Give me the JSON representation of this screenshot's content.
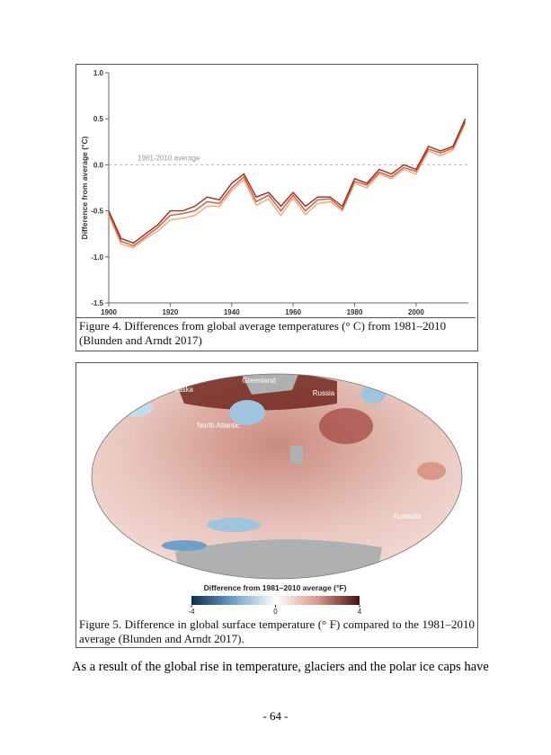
{
  "chart_data": {
    "type": "line",
    "y_label": "Difference from average (°C)",
    "annotation": "1981-2010 average",
    "x": [
      1900,
      1904,
      1908,
      1912,
      1916,
      1920,
      1924,
      1928,
      1932,
      1936,
      1940,
      1944,
      1948,
      1952,
      1956,
      1960,
      1964,
      1968,
      1972,
      1976,
      1980,
      1984,
      1988,
      1992,
      1996,
      2000,
      2004,
      2008,
      2012,
      2016
    ],
    "series": [
      {
        "color": "#9e2a22",
        "values": [
          -0.5,
          -0.8,
          -0.85,
          -0.75,
          -0.65,
          -0.5,
          -0.5,
          -0.45,
          -0.35,
          -0.38,
          -0.2,
          -0.1,
          -0.35,
          -0.3,
          -0.45,
          -0.3,
          -0.45,
          -0.35,
          -0.35,
          -0.45,
          -0.15,
          -0.2,
          -0.05,
          -0.1,
          0.0,
          -0.05,
          0.2,
          0.15,
          0.2,
          0.5
        ]
      },
      {
        "color": "#d8573a",
        "values": [
          -0.52,
          -0.83,
          -0.88,
          -0.78,
          -0.68,
          -0.55,
          -0.53,
          -0.5,
          -0.4,
          -0.42,
          -0.25,
          -0.13,
          -0.4,
          -0.33,
          -0.5,
          -0.33,
          -0.5,
          -0.38,
          -0.37,
          -0.48,
          -0.18,
          -0.22,
          -0.08,
          -0.13,
          -0.03,
          -0.07,
          0.17,
          0.13,
          0.18,
          0.47
        ]
      },
      {
        "color": "#f2a874",
        "values": [
          -0.55,
          -0.86,
          -0.9,
          -0.8,
          -0.72,
          -0.6,
          -0.58,
          -0.55,
          -0.45,
          -0.45,
          -0.28,
          -0.16,
          -0.44,
          -0.37,
          -0.55,
          -0.36,
          -0.54,
          -0.42,
          -0.4,
          -0.5,
          -0.2,
          -0.25,
          -0.1,
          -0.15,
          -0.05,
          -0.1,
          0.15,
          0.1,
          0.16,
          0.45
        ]
      }
    ],
    "xlim": [
      1900,
      2017
    ],
    "ylim": [
      -1.5,
      1.0
    ],
    "xticks": [
      1900,
      1920,
      1940,
      1960,
      1980,
      2000
    ],
    "yticks": [
      {
        "value": 1.0,
        "label": "1.0"
      },
      0.5,
      {
        "value": 0.0,
        "label": "0.0"
      },
      -0.5,
      {
        "value": -1.0,
        "label": "-1.0"
      },
      -1.5
    ],
    "reference_line": 0
  },
  "figure4_caption": "Figure 4. Differences from global average temperatures (° C) from 1981–2010 (Blunden and Arndt 2017)",
  "map": {
    "labels": [
      "Alaska",
      "Greenland",
      "Russia",
      "North Atlantic",
      "Australia"
    ],
    "colorbar": {
      "title": "Difference from 1981–2010 average (°F)",
      "lim": [
        -4,
        4
      ],
      "ticks": [
        -4,
        0,
        4
      ]
    }
  },
  "figure5_caption": "Figure 5. Difference in global surface temperature (° F) compared to the 1981–2010 average (Blunden and Arndt 2017).",
  "body_text": "As a result of the global rise in temperature, glaciers and the polar ice caps have",
  "page_number": "- 64 -"
}
